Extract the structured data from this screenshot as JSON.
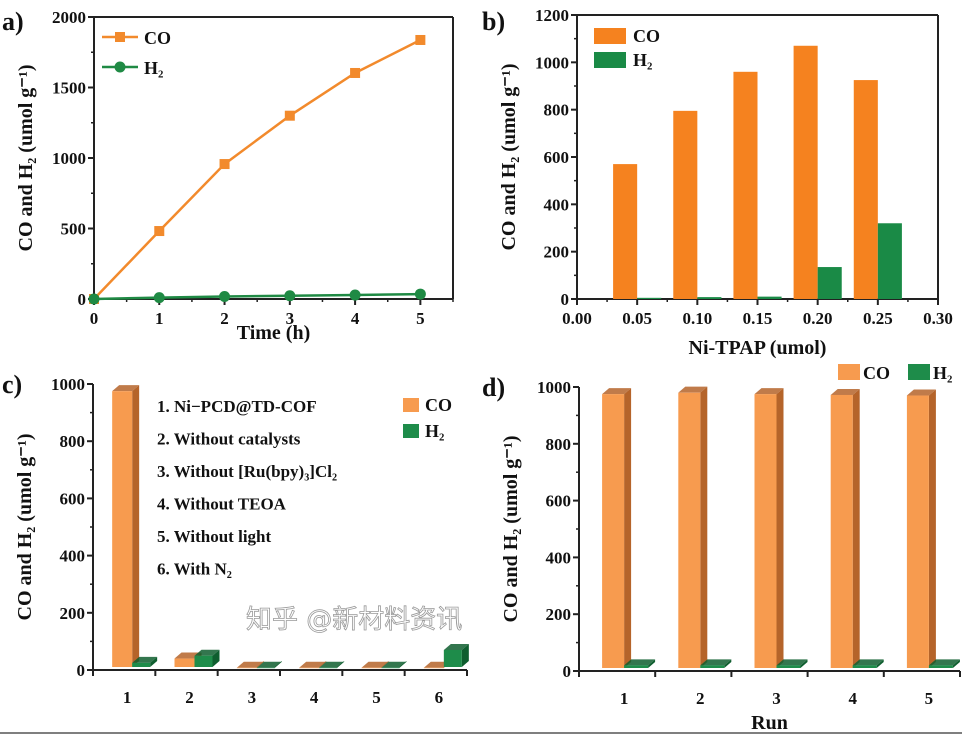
{
  "chart_data": [
    {
      "panel": "a)",
      "type": "line",
      "xlabel": "Time (h)",
      "ylabel": "CO and H₂ (umol g⁻¹)",
      "xlim": [
        0,
        5.5
      ],
      "ylim": [
        0,
        2000
      ],
      "xticks": [
        "0",
        "1",
        "2",
        "3",
        "4",
        "5"
      ],
      "yticks": [
        "0",
        "500",
        "1000",
        "1500",
        "2000"
      ],
      "x": [
        0,
        1,
        2,
        3,
        4,
        5
      ],
      "series": [
        {
          "name": "CO",
          "values": [
            0,
            482,
            957,
            1300,
            1603,
            1837
          ],
          "color": "#f28a2c",
          "marker": "square"
        },
        {
          "name": "H₂",
          "values": [
            0,
            10,
            18,
            23,
            28,
            35
          ],
          "color": "#1f8a44",
          "marker": "circle"
        }
      ],
      "legend": "top-left",
      "grid": false
    },
    {
      "panel": "b)",
      "type": "bar",
      "xlabel": "Ni-TPAP (umol)",
      "ylabel": "CO and H₂ (umol g⁻¹)",
      "xlim": [
        0,
        0.3
      ],
      "ylim": [
        0,
        1200
      ],
      "xticks": [
        "0.00",
        "0.05",
        "0.10",
        "0.15",
        "0.20",
        "0.25",
        "0.30"
      ],
      "yticks": [
        "0",
        "200",
        "400",
        "600",
        "800",
        "1000",
        "1200"
      ],
      "x": [
        0.05,
        0.1,
        0.15,
        0.2,
        0.25
      ],
      "series": [
        {
          "name": "CO",
          "values": [
            570,
            795,
            960,
            1070,
            925
          ],
          "color": "#f5821f"
        },
        {
          "name": "H₂",
          "values": [
            5,
            8,
            10,
            135,
            320
          ],
          "color": "#1a8a46"
        }
      ],
      "legend": "top-left",
      "grid": false
    },
    {
      "panel": "c)",
      "type": "bar",
      "xlabel": "",
      "ylabel": "CO and H₂ (umol g⁻¹)",
      "ylim": [
        0,
        1000
      ],
      "yticks": [
        "0",
        "200",
        "400",
        "600",
        "800",
        "1000"
      ],
      "categories": [
        "1",
        "2",
        "3",
        "4",
        "5",
        "6"
      ],
      "series": [
        {
          "name": "CO",
          "values": [
            975,
            40,
            8,
            8,
            8,
            8
          ],
          "color": "#f79b4f"
        },
        {
          "name": "H₂",
          "values": [
            25,
            50,
            8,
            8,
            8,
            70
          ],
          "color": "#1e8c4a"
        }
      ],
      "annotations": [
        "1. Ni−PCD@TD-COF",
        "2. Without catalysts",
        "3. Without [Ru(bpy)₃]Cl₂",
        "4. Without TEOA",
        "5. Without light",
        "6. With N₂"
      ],
      "legend": "top-right",
      "grid": false
    },
    {
      "panel": "d)",
      "type": "bar",
      "xlabel": "Run",
      "ylabel": "CO and H₂ (umol g⁻¹)",
      "ylim": [
        0,
        1000
      ],
      "yticks": [
        "0",
        "200",
        "400",
        "600",
        "800",
        "1000"
      ],
      "categories": [
        "1",
        "2",
        "3",
        "4",
        "5"
      ],
      "series": [
        {
          "name": "CO",
          "values": [
            975,
            980,
            975,
            972,
            970
          ],
          "color": "#f79b4f"
        },
        {
          "name": "H₂",
          "values": [
            20,
            20,
            20,
            20,
            20
          ],
          "color": "#1e8c4a"
        }
      ],
      "legend": "top-right",
      "grid": false
    }
  ],
  "watermark": "知乎 @新材料资讯"
}
